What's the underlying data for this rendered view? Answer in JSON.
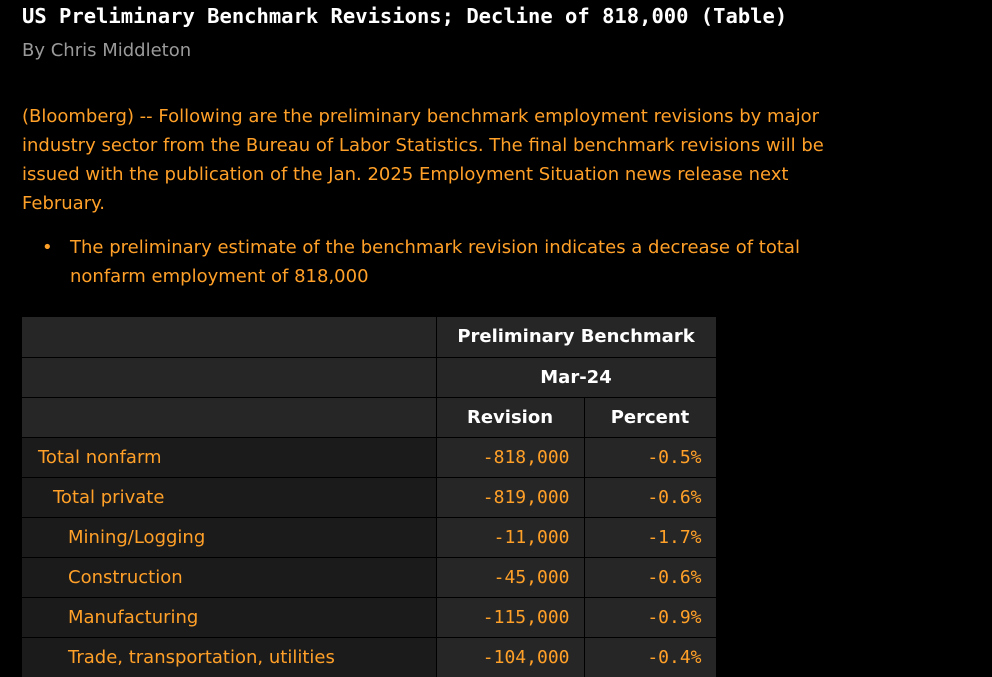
{
  "article": {
    "title": "US Preliminary Benchmark Revisions; Decline of 818,000 (Table)",
    "byline": "By Chris Middleton",
    "intro": "(Bloomberg) -- Following are the preliminary benchmark employment revisions by major industry sector from the Bureau of Labor Statistics. The final benchmark revisions will be issued with the publication of the Jan. 2025 Employment Situation news release next February.",
    "bullet": "The preliminary estimate of the benchmark revision indicates a decrease of total nonfarm employment of 818,000",
    "bullet_marker": "•"
  },
  "table": {
    "header_group": "Preliminary Benchmark",
    "header_period": "Mar-24",
    "col_revision": "Revision",
    "col_percent": "Percent",
    "rows": [
      {
        "label": "Total nonfarm",
        "level": 0,
        "revision": "-818,000",
        "percent": "-0.5%"
      },
      {
        "label": "Total private",
        "level": 1,
        "revision": "-819,000",
        "percent": "-0.6%"
      },
      {
        "label": "Mining/Logging",
        "level": 2,
        "revision": "-11,000",
        "percent": "-1.7%"
      },
      {
        "label": "Construction",
        "level": 2,
        "revision": "-45,000",
        "percent": "-0.6%"
      },
      {
        "label": "Manufacturing",
        "level": 2,
        "revision": "-115,000",
        "percent": "-0.9%"
      },
      {
        "label": "Trade, transportation, utilities",
        "level": 2,
        "revision": "-104,000",
        "percent": "-0.4%"
      }
    ]
  },
  "colors": {
    "background": "#000000",
    "accent_amber": "#ffa028",
    "title_white": "#ffffff",
    "byline_gray": "#9a9a9a"
  }
}
